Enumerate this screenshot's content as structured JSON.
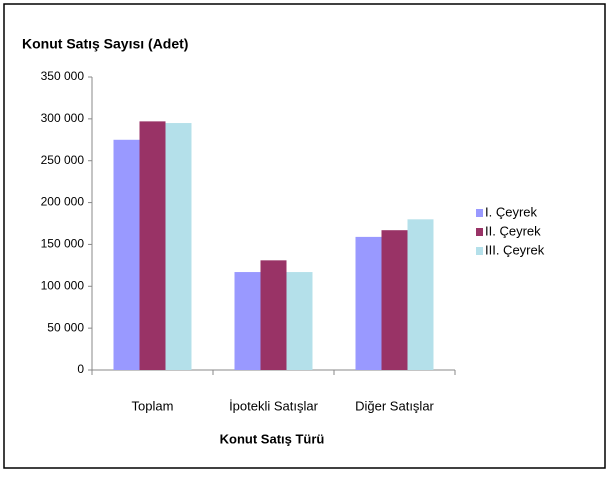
{
  "chart_data": {
    "type": "bar",
    "title": "Konut Satış Sayısı (Adet)",
    "x_label": "Konut Satış Türü",
    "categories": [
      "Toplam",
      "İpotekli Satışlar",
      "Diğer Satışlar"
    ],
    "series": [
      {
        "name": "I. Çeyrek",
        "color": "#9999ff",
        "values": [
          275000,
          117000,
          159000
        ]
      },
      {
        "name": "II. Çeyrek",
        "color": "#993366",
        "values": [
          297000,
          131000,
          167000
        ]
      },
      {
        "name": "III. Çeyrek",
        "color": "#b4e0ea",
        "values": [
          295000,
          117000,
          180000
        ]
      }
    ],
    "ylim": [
      0,
      350000
    ],
    "yticks": [
      0,
      {
        "value": 50000,
        "label": "50 000"
      },
      {
        "value": 100000,
        "label": "100 000"
      },
      {
        "value": 150000,
        "label": "150 000"
      },
      {
        "value": 200000,
        "label": "200 000"
      },
      {
        "value": 250000,
        "label": "250 000"
      },
      {
        "value": 300000,
        "label": "300 000"
      },
      {
        "value": 350000,
        "label": "350 000"
      }
    ],
    "legend": "right"
  }
}
